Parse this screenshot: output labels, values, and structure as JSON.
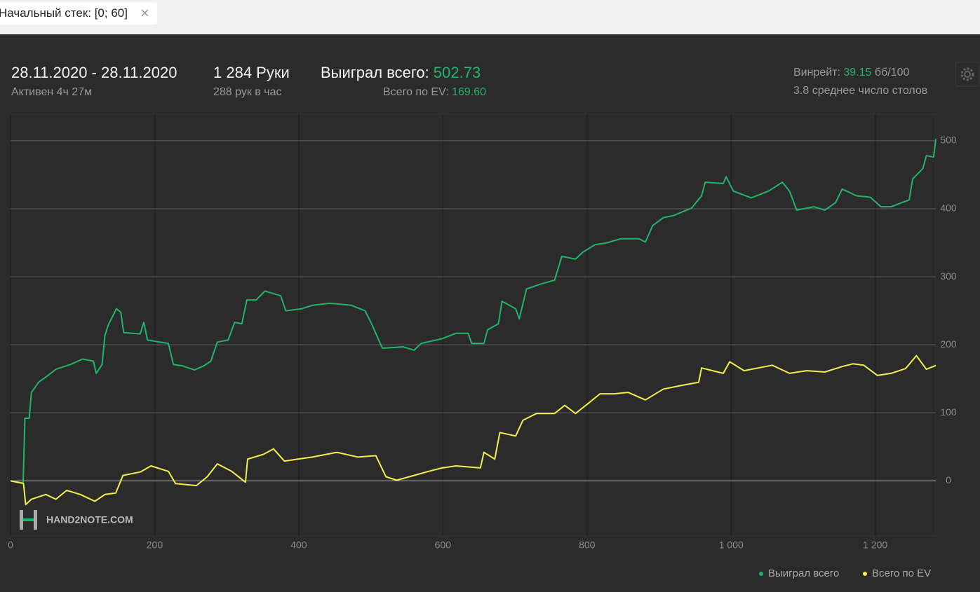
{
  "filter": {
    "label": "Начальный стек: [0; 60]"
  },
  "header": {
    "date_range": "28.11.2020 - 28.11.2020",
    "active": "Активен 4ч 27м",
    "hands": "1 284 Руки",
    "hands_per_hour": "288 рук в час",
    "won_label": "Выиграл всего:",
    "won_value": "502.73",
    "ev_label": "Всего по EV:",
    "ev_value": "169.60",
    "winrate_label": "Винрейт:",
    "winrate_value": "39.15",
    "winrate_unit": "бб/100",
    "tables": "3.8 среднее число столов"
  },
  "chart_data": {
    "type": "line",
    "watermark": "HAND2NOTE.COM",
    "xlim": [
      0,
      1284
    ],
    "ylim": [
      -81,
      539
    ],
    "xticks": [
      0,
      200,
      400,
      600,
      800,
      {
        "value": 1000,
        "label": "1 000"
      },
      {
        "value": 1200,
        "label": "1 200"
      }
    ],
    "yticks": [
      0,
      100,
      200,
      300,
      400,
      500
    ],
    "grid": true,
    "series": [
      {
        "name": "Выиграл всего",
        "color": "#22b46c",
        "x": [
          0,
          17.5,
          20,
          26,
          29,
          39,
          52,
          63,
          83,
          100,
          115,
          119,
          127,
          131,
          136,
          147,
          153,
          157,
          180,
          185,
          190,
          219,
          226,
          239,
          255,
          268,
          278,
          287,
          302,
          311,
          321,
          328,
          341,
          353,
          375,
          382,
          404,
          419,
          443,
          473,
          492,
          501,
          511,
          516,
          545,
          560,
          570,
          599,
          618,
          635,
          640,
          657,
          662,
          677,
          682,
          701,
          706,
          716,
          735,
          755,
          765,
          784,
          794,
          811,
          828,
          847,
          872,
          881,
          891,
          906,
          920,
          945,
          959,
          964,
          989,
          993,
          1003,
          1028,
          1052,
          1071,
          1081,
          1091,
          1115,
          1130,
          1145,
          1154,
          1174,
          1193,
          1208,
          1222,
          1247,
          1252,
          1266,
          1271,
          1281,
          1284
        ],
        "values": [
          0,
          -3,
          92,
          92,
          130,
          145,
          155,
          164,
          171,
          179,
          176,
          158,
          171,
          214,
          230,
          253,
          248,
          218,
          216,
          233,
          207,
          202,
          171,
          169,
          163,
          169,
          176,
          204,
          207,
          233,
          231,
          266,
          266,
          279,
          272,
          250,
          253,
          258,
          261,
          258,
          250,
          231,
          207,
          195,
          197,
          192,
          202,
          209,
          217,
          217,
          202,
          202,
          222,
          231,
          264,
          253,
          238,
          282,
          289,
          295,
          330,
          326,
          336,
          347,
          350,
          356,
          356,
          351,
          375,
          387,
          390,
          401,
          419,
          439,
          437,
          447,
          426,
          416,
          426,
          439,
          426,
          398,
          403,
          398,
          409,
          429,
          419,
          417,
          403,
          403,
          413,
          444,
          459,
          478,
          476,
          502.73
        ]
      },
      {
        "name": "Всего по EV",
        "color": "#f2ee4f",
        "x": [
          0,
          18,
          21,
          29,
          49,
          63,
          78,
          97,
          117,
          131,
          146,
          156,
          180,
          195,
          219,
          229,
          258,
          273,
          287,
          307,
          326,
          329,
          351,
          365,
          380,
          399,
          419,
          453,
          482,
          507,
          521,
          536,
          560,
          580,
          599,
          618,
          652,
          657,
          672,
          679,
          701,
          711,
          730,
          755,
          769,
          784,
          803,
          818,
          838,
          857,
          881,
          906,
          930,
          955,
          959,
          989,
          998,
          1018,
          1057,
          1081,
          1105,
          1130,
          1154,
          1169,
          1184,
          1203,
          1222,
          1242,
          1257,
          1271,
          1284
        ],
        "values": [
          0,
          -4,
          -35,
          -27,
          -20,
          -27,
          -14,
          -20,
          -30,
          -20,
          -18,
          8,
          13,
          22,
          14,
          -4,
          -7,
          6,
          25,
          14,
          -2,
          32,
          39,
          47,
          29,
          32,
          35,
          42,
          35,
          37,
          6,
          1,
          8,
          14,
          19,
          22,
          19,
          42,
          32,
          71,
          66,
          89,
          99,
          99,
          111,
          99,
          115,
          128,
          128,
          130,
          119,
          135,
          140,
          145,
          166,
          158,
          175,
          162,
          170,
          158,
          162,
          160,
          168,
          172,
          170,
          155,
          158,
          165,
          184,
          164,
          169.6
        ]
      }
    ]
  }
}
